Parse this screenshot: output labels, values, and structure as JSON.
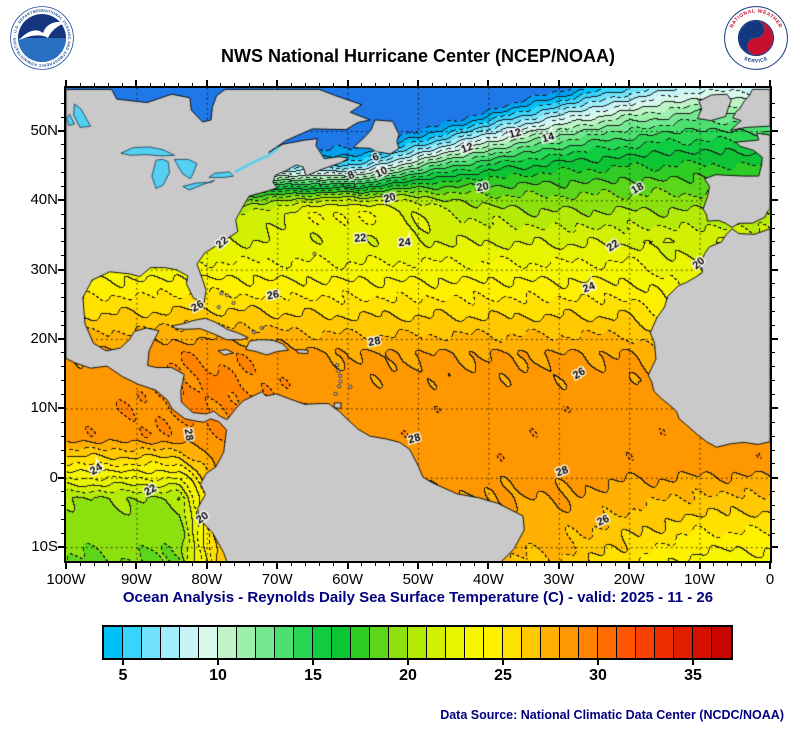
{
  "header": {
    "title": "NWS National Hurricane Center (NCEP/NOAA)",
    "noaa_ring_text": "NATIONAL OCEANIC AND ATMOSPHERIC ADMINISTRATION - U.S. DEPARTMENT OF COMMERCE",
    "nws_ring_text_top": "NATIONAL WEATHER",
    "nws_ring_text_bottom": "SERVICE"
  },
  "caption": "Ocean Analysis - Reynolds Daily Sea Surface Temperature (C) - valid: 2025 - 11 - 26",
  "footer": {
    "data_source": "Data Source: National Climatic Data Center (NCDC/NOAA)"
  },
  "chart_data": {
    "type": "heatmap",
    "title": "Reynolds Daily Sea Surface Temperature (C)",
    "valid_date": "2025 - 11 - 26",
    "units": "C",
    "region": {
      "lon_min": -100,
      "lon_max": 0,
      "lat_min": -12.0,
      "lat_max": 56.2
    },
    "x_ticks": [
      "100W",
      "90W",
      "80W",
      "70W",
      "60W",
      "50W",
      "40W",
      "30W",
      "20W",
      "10W",
      "0"
    ],
    "x_tick_lons": [
      -100,
      -90,
      -80,
      -70,
      -60,
      -50,
      -40,
      -30,
      -20,
      -10,
      0
    ],
    "y_ticks": [
      "50N",
      "40N",
      "30N",
      "20N",
      "10N",
      "0",
      "10S"
    ],
    "y_tick_lats": [
      50,
      40,
      30,
      20,
      10,
      0,
      -10
    ],
    "grid_lons": [
      -90,
      -80,
      -70,
      -60,
      -50,
      -40,
      -30,
      -20,
      -10
    ],
    "grid_lats": [
      50,
      40,
      30,
      20,
      10,
      0,
      -10
    ],
    "contour_interval": 1,
    "solid_contour_interval": 2,
    "land_color": "#c9c9c9",
    "lake_color": "#55d0f0",
    "coast_color": "#000000",
    "colormap_t_min": 2,
    "colormap": [
      "#1e78e8",
      "#00a0f0",
      "#00c0f8",
      "#38d4fa",
      "#70e2fb",
      "#a0edfc",
      "#c8f4f8",
      "#d8f8ec",
      "#c0f4c8",
      "#9cf0ac",
      "#74e890",
      "#4ce070",
      "#28d654",
      "#10cc40",
      "#0cc434",
      "#2ecc24",
      "#5cd61a",
      "#8ce00e",
      "#b4ea08",
      "#d2f004",
      "#e8f400",
      "#f6f600",
      "#fff000",
      "#ffe000",
      "#ffc800",
      "#ffb000",
      "#ff9800",
      "#ff8200",
      "#ff6c00",
      "#ff5400",
      "#f84000",
      "#ee2e00",
      "#e21e00",
      "#d61000",
      "#c80600"
    ],
    "colorbar": {
      "t_min": 4,
      "t_max": 37,
      "tick_values": [
        5,
        10,
        15,
        20,
        25,
        30,
        35
      ],
      "tick_labels": [
        "5",
        "10",
        "15",
        "20",
        "25",
        "30",
        "35"
      ]
    },
    "contour_labels": [
      {
        "value": "6",
        "lon": -56.0,
        "lat": 46.2,
        "rot": -20
      },
      {
        "value": "8",
        "lon": -59.5,
        "lat": 43.6,
        "rot": -25
      },
      {
        "value": "10",
        "lon": -55.2,
        "lat": 44.0,
        "rot": -25
      },
      {
        "value": "12",
        "lon": -43.0,
        "lat": 47.5,
        "rot": -20
      },
      {
        "value": "12",
        "lon": -36.2,
        "lat": 49.6,
        "rot": -15
      },
      {
        "value": "14",
        "lon": -31.5,
        "lat": 49.0,
        "rot": -15
      },
      {
        "value": "20",
        "lon": -54.0,
        "lat": 40.3,
        "rot": -15
      },
      {
        "value": "20",
        "lon": -40.8,
        "lat": 41.9,
        "rot": -10
      },
      {
        "value": "18",
        "lon": -18.8,
        "lat": 41.7,
        "rot": -30
      },
      {
        "value": "22",
        "lon": -77.8,
        "lat": 33.9,
        "rot": -40
      },
      {
        "value": "22",
        "lon": -58.2,
        "lat": 34.5,
        "rot": -5
      },
      {
        "value": "24",
        "lon": -51.9,
        "lat": 33.9,
        "rot": -5
      },
      {
        "value": "22",
        "lon": -22.3,
        "lat": 33.4,
        "rot": -35
      },
      {
        "value": "20",
        "lon": -10.1,
        "lat": 30.9,
        "rot": -40
      },
      {
        "value": "26",
        "lon": -70.6,
        "lat": 26.3,
        "rot": -10
      },
      {
        "value": "24",
        "lon": -25.7,
        "lat": 27.4,
        "rot": -20
      },
      {
        "value": "26",
        "lon": -81.3,
        "lat": 24.7,
        "rot": -30
      },
      {
        "value": "28",
        "lon": -56.2,
        "lat": 19.6,
        "rot": -10
      },
      {
        "value": "26",
        "lon": -27.1,
        "lat": 15.0,
        "rot": -30
      },
      {
        "value": "28",
        "lon": -82.6,
        "lat": 6.2,
        "rot": 80
      },
      {
        "value": "28",
        "lon": -50.5,
        "lat": 5.6,
        "rot": -15
      },
      {
        "value": "28",
        "lon": -29.5,
        "lat": 0.9,
        "rot": -20
      },
      {
        "value": "26",
        "lon": -23.7,
        "lat": -6.2,
        "rot": -25
      },
      {
        "value": "24",
        "lon": -95.7,
        "lat": 1.2,
        "rot": -30
      },
      {
        "value": "22",
        "lon": -88.0,
        "lat": -1.8,
        "rot": -30
      },
      {
        "value": "20",
        "lon": -80.6,
        "lat": -5.8,
        "rot": -35
      }
    ]
  }
}
